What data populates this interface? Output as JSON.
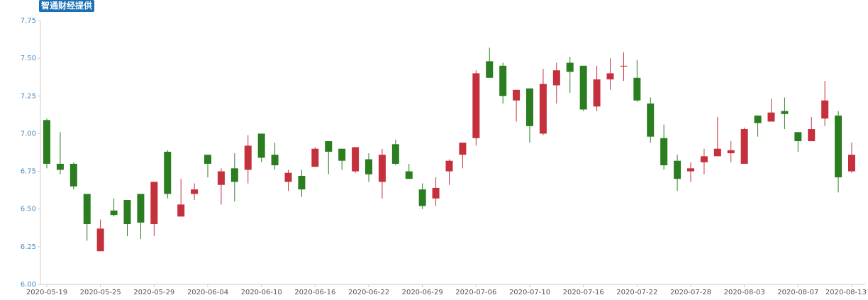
{
  "badge": "智通财经提供",
  "chart_data": {
    "type": "candlestick",
    "categories": [
      "2020-05-19",
      null,
      null,
      null,
      "2020-05-25",
      null,
      null,
      null,
      "2020-05-29",
      null,
      null,
      null,
      "2020-06-04",
      null,
      null,
      null,
      "2020-06-10",
      null,
      null,
      null,
      "2020-06-16",
      null,
      null,
      null,
      "2020-06-22",
      null,
      null,
      null,
      "2020-06-29",
      null,
      null,
      null,
      "2020-07-06",
      null,
      null,
      null,
      "2020-07-10",
      null,
      null,
      null,
      "2020-07-16",
      null,
      null,
      null,
      "2020-07-22",
      null,
      null,
      null,
      "2020-07-28",
      null,
      null,
      null,
      "2020-08-03",
      null,
      null,
      null,
      "2020-08-07",
      null,
      null,
      null,
      "2020-08-13"
    ],
    "open": [
      7.09,
      6.8,
      6.8,
      6.6,
      6.22,
      6.49,
      6.56,
      6.6,
      6.4,
      6.88,
      6.45,
      6.6,
      6.86,
      6.66,
      6.77,
      6.76,
      7.0,
      6.86,
      6.68,
      6.72,
      6.78,
      6.95,
      6.9,
      6.75,
      6.83,
      6.68,
      6.93,
      6.75,
      6.63,
      6.57,
      6.75,
      6.86,
      6.97,
      7.48,
      7.45,
      7.22,
      7.3,
      7.0,
      7.32,
      7.47,
      7.45,
      7.18,
      7.36,
      7.45,
      7.37,
      7.2,
      6.97,
      6.82,
      6.75,
      6.81,
      6.85,
      6.87,
      6.8,
      7.12,
      7.08,
      7.15,
      7.01,
      6.95,
      7.1,
      7.12,
      6.75
    ],
    "high": [
      7.1,
      7.01,
      6.81,
      6.6,
      6.43,
      6.57,
      6.56,
      6.6,
      6.68,
      6.89,
      6.7,
      6.67,
      6.86,
      6.77,
      6.87,
      6.99,
      7.0,
      6.94,
      6.76,
      6.76,
      6.91,
      6.95,
      6.9,
      6.91,
      6.87,
      6.9,
      6.96,
      6.8,
      6.67,
      6.71,
      6.83,
      6.94,
      7.42,
      7.57,
      7.47,
      7.29,
      7.3,
      7.43,
      7.47,
      7.51,
      7.45,
      7.45,
      7.5,
      7.54,
      7.49,
      7.24,
      7.06,
      6.86,
      6.81,
      6.9,
      7.11,
      6.95,
      7.04,
      7.12,
      7.23,
      7.24,
      7.01,
      7.11,
      7.35,
      7.15,
      6.94
    ],
    "low": [
      6.77,
      6.73,
      6.63,
      6.29,
      6.22,
      6.45,
      6.32,
      6.3,
      6.32,
      6.57,
      6.45,
      6.56,
      6.71,
      6.53,
      6.55,
      6.67,
      6.81,
      6.76,
      6.62,
      6.58,
      6.78,
      6.73,
      6.76,
      6.74,
      6.68,
      6.57,
      6.79,
      6.7,
      6.5,
      6.52,
      6.66,
      6.77,
      6.92,
      7.37,
      7.2,
      7.08,
      6.94,
      6.99,
      7.2,
      7.27,
      7.15,
      7.15,
      7.29,
      7.35,
      7.21,
      6.94,
      6.76,
      6.62,
      6.68,
      6.73,
      6.85,
      6.81,
      6.8,
      6.98,
      7.08,
      7.03,
      6.88,
      6.95,
      7.05,
      6.61,
      6.74
    ],
    "close": [
      6.8,
      6.76,
      6.65,
      6.4,
      6.37,
      6.46,
      6.4,
      6.41,
      6.68,
      6.6,
      6.53,
      6.63,
      6.8,
      6.75,
      6.68,
      6.92,
      6.84,
      6.79,
      6.74,
      6.63,
      6.9,
      6.88,
      6.82,
      6.91,
      6.73,
      6.86,
      6.8,
      6.7,
      6.52,
      6.64,
      6.82,
      6.94,
      7.4,
      7.37,
      7.25,
      7.29,
      7.05,
      7.33,
      7.42,
      7.41,
      7.16,
      7.36,
      7.4,
      7.45,
      7.22,
      6.98,
      6.79,
      6.7,
      6.77,
      6.85,
      6.9,
      6.89,
      7.03,
      7.07,
      7.14,
      7.13,
      6.95,
      7.03,
      7.22,
      6.71,
      6.86
    ],
    "up_color": "#c4303c",
    "down_color": "#2a7e1f",
    "ylim": [
      6.0,
      7.75
    ],
    "yticks": [
      {
        "value": 6.0,
        "label": "6.00"
      },
      6.25,
      {
        "value": 6.5,
        "label": "6.50"
      },
      6.75,
      {
        "value": 7.0,
        "label": "7.00"
      },
      7.25,
      {
        "value": 7.5,
        "label": "7.50"
      },
      7.75
    ]
  }
}
